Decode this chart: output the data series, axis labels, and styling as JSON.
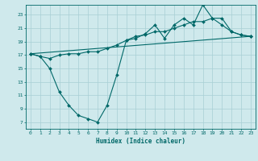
{
  "xlabel": "Humidex (Indice chaleur)",
  "bg_color": "#cfe9ec",
  "grid_color": "#a8cfd4",
  "line_color": "#006868",
  "xlim": [
    -0.5,
    23.5
  ],
  "ylim": [
    6.0,
    24.5
  ],
  "yticks": [
    7,
    9,
    11,
    13,
    15,
    17,
    19,
    21,
    23
  ],
  "xticks": [
    0,
    1,
    2,
    3,
    4,
    5,
    6,
    7,
    8,
    9,
    10,
    11,
    12,
    13,
    14,
    15,
    16,
    17,
    18,
    19,
    20,
    21,
    22,
    23
  ],
  "line1_x": [
    0,
    1,
    2,
    3,
    4,
    5,
    6,
    7,
    8,
    9,
    10,
    11,
    12,
    13,
    14,
    15,
    16,
    17,
    18,
    19,
    20,
    21,
    22,
    23
  ],
  "line1_y": [
    17.2,
    16.8,
    15.0,
    11.5,
    9.5,
    8.0,
    7.5,
    7.0,
    9.5,
    14.0,
    19.2,
    19.5,
    20.2,
    21.5,
    19.5,
    21.5,
    22.5,
    21.5,
    24.5,
    22.5,
    21.5,
    20.5,
    20.0,
    19.8
  ],
  "line2_x": [
    0,
    1,
    2,
    3,
    4,
    5,
    6,
    7,
    8,
    9,
    10,
    11,
    12,
    13,
    14,
    15,
    16,
    17,
    18,
    19,
    20,
    21,
    22,
    23
  ],
  "line2_y": [
    17.2,
    16.8,
    16.5,
    17.0,
    17.2,
    17.2,
    17.5,
    17.5,
    18.0,
    18.5,
    19.2,
    19.8,
    20.0,
    20.5,
    20.5,
    21.0,
    21.5,
    22.0,
    22.0,
    22.5,
    22.5,
    20.5,
    20.0,
    19.8
  ],
  "line3_x": [
    0,
    23
  ],
  "line3_y": [
    17.2,
    19.8
  ]
}
